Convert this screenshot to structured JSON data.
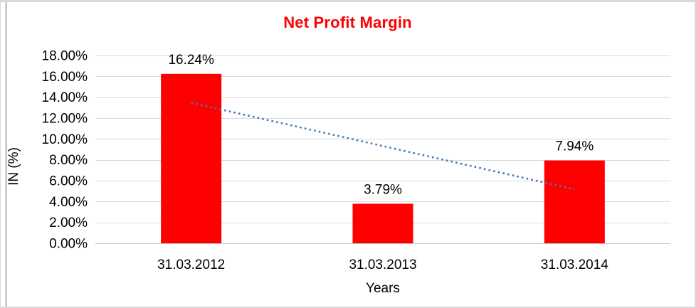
{
  "chart_data": {
    "type": "bar",
    "title": "Net Profit Margin",
    "xlabel": "Years",
    "ylabel": "IN (%)",
    "categories": [
      "31.03.2012",
      "31.03.2013",
      "31.03.2014"
    ],
    "values": [
      16.24,
      3.79,
      7.94
    ],
    "value_labels": [
      "16.24%",
      "3.79%",
      "7.94%"
    ],
    "ylim": [
      0,
      18
    ],
    "ytick_step": 2,
    "ytick_labels": [
      "0.00%",
      "2.00%",
      "4.00%",
      "6.00%",
      "8.00%",
      "10.00%",
      "12.00%",
      "14.00%",
      "16.00%",
      "18.00%"
    ],
    "grid": "horizontal",
    "legend": "none",
    "bar_color": "#ff0000",
    "title_color": "#ff0000",
    "trendline": {
      "type": "linear",
      "style": "dotted",
      "color": "#4576b5",
      "start_value": 13.47,
      "end_value": 5.17
    }
  },
  "colors": {
    "gridline": "#d9d9d9",
    "axis_line": "#c6c6c6",
    "frame_border": "#d9d9d9",
    "left_accent_line": "#5a5a5a",
    "text": "#000000",
    "background": "#ffffff"
  }
}
